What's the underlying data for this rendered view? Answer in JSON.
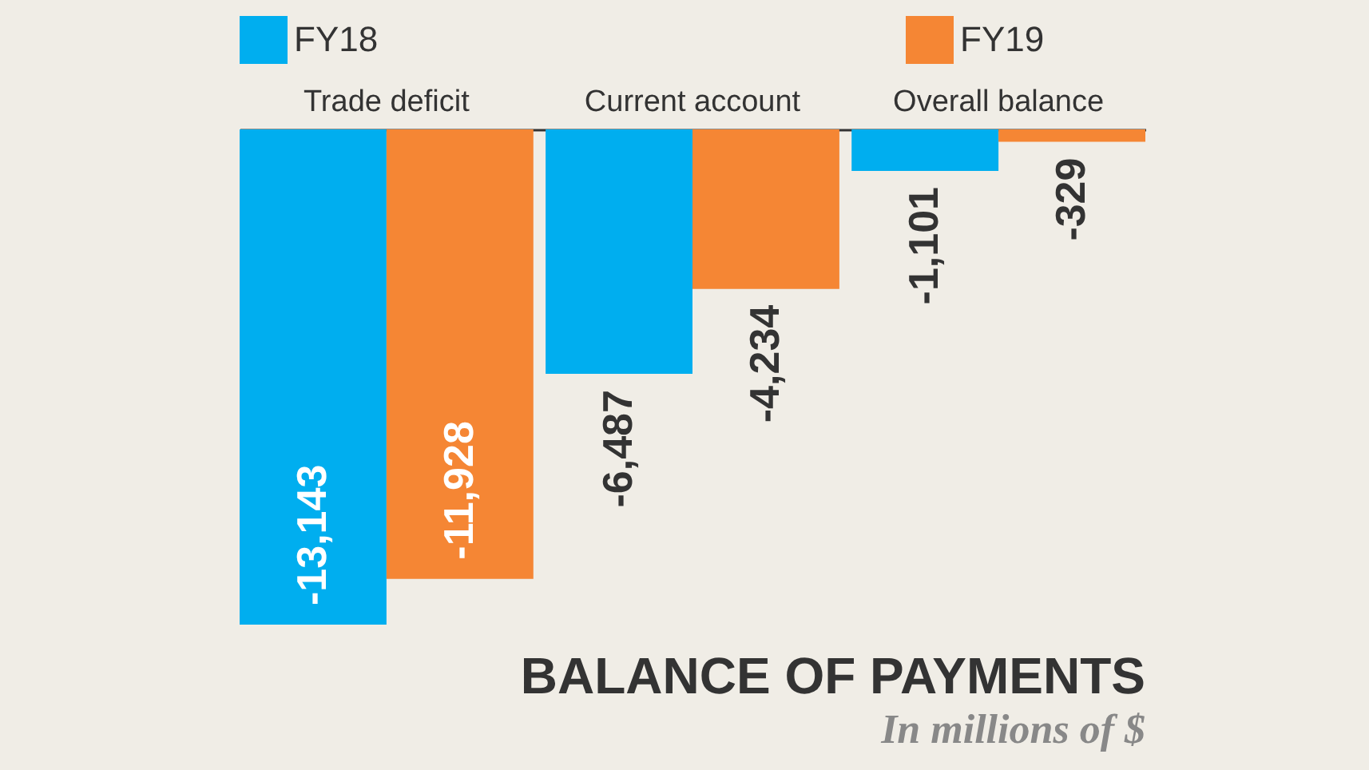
{
  "chart_data": {
    "type": "bar",
    "title": "BALANCE OF PAYMENTS",
    "subtitle": "In millions of $",
    "categories": [
      "Trade deficit",
      "Current account",
      "Overall balance"
    ],
    "series": [
      {
        "name": "FY18",
        "color": "#00aeef",
        "values": [
          -13143,
          -6487,
          -1101
        ],
        "value_labels": [
          "-13,143",
          "-6,487",
          "-1,101"
        ]
      },
      {
        "name": "FY19",
        "color": "#f58634",
        "values": [
          -11928,
          -4234,
          -329
        ],
        "value_labels": [
          "-11,928",
          "-4,234",
          "-329"
        ]
      }
    ],
    "legend": "top",
    "grid": false
  }
}
